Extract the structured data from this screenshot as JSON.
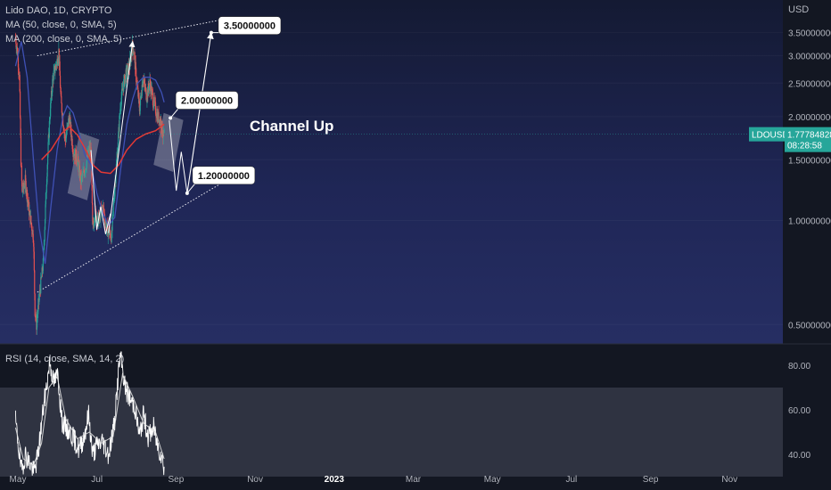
{
  "legend": {
    "symbol_line": "Lido DAO, 1D, CRYPTO",
    "ma50": "MA (50, close, 0, SMA, 5)",
    "ma200": "MA (200, close, 0, SMA, 5)",
    "rsi": "RSI (14, close, SMA, 14, 2)"
  },
  "currency": "USD",
  "price_badge": {
    "ticker": "LDOUSD",
    "price": "1.77784828",
    "countdown": "08:28:58",
    "color": "#26a69a"
  },
  "annotation": "Channel Up",
  "colors": {
    "background": "#131722",
    "candle_up": "#26a69a",
    "candle_down": "#ef5350",
    "ma50": "#3f51b5",
    "ma200": "#e53935",
    "rsi_band": "#3a3e4c"
  },
  "chart_data": [
    {
      "type": "candlestick",
      "y_scale": "log",
      "ylim": [
        0.45,
        4.1
      ],
      "y_ticks": [
        "0.50000000",
        "1.00000000",
        "1.50000000",
        "2.00000000",
        "2.50000000",
        "3.00000000",
        "3.50000000"
      ],
      "x_ticks": [
        "May",
        "Jul",
        "Sep",
        "Nov",
        "2023",
        "Mar",
        "May",
        "Jul",
        "Sep",
        "Nov"
      ],
      "close_path": [
        {
          "x": "2022-04-25",
          "y": 3.4
        },
        {
          "x": "2022-05-01",
          "y": 3.0
        },
        {
          "x": "2022-05-05",
          "y": 2.6
        },
        {
          "x": "2022-05-09",
          "y": 1.5
        },
        {
          "x": "2022-05-12",
          "y": 1.2
        },
        {
          "x": "2022-05-20",
          "y": 1.3
        },
        {
          "x": "2022-05-31",
          "y": 1.05
        },
        {
          "x": "2022-06-10",
          "y": 0.9
        },
        {
          "x": "2022-06-14",
          "y": 0.55
        },
        {
          "x": "2022-06-18",
          "y": 0.5
        },
        {
          "x": "2022-06-25",
          "y": 0.6
        },
        {
          "x": "2022-07-05",
          "y": 0.75
        },
        {
          "x": "2022-07-15",
          "y": 1.4
        },
        {
          "x": "2022-07-22",
          "y": 2.0
        },
        {
          "x": "2022-07-30",
          "y": 2.6
        },
        {
          "x": "2022-08-10",
          "y": 2.9
        },
        {
          "x": "2022-08-14",
          "y": 3.1
        },
        {
          "x": "2022-08-20",
          "y": 2.2
        },
        {
          "x": "2022-08-31",
          "y": 1.7
        },
        {
          "x": "2022-09-10",
          "y": 2.0
        },
        {
          "x": "2022-09-20",
          "y": 1.6
        },
        {
          "x": "2022-10-01",
          "y": 1.5
        },
        {
          "x": "2022-10-10",
          "y": 1.3
        },
        {
          "x": "2022-10-20",
          "y": 1.4
        },
        {
          "x": "2022-10-31",
          "y": 1.6
        },
        {
          "x": "2022-11-05",
          "y": 1.6
        },
        {
          "x": "2022-11-09",
          "y": 0.95
        },
        {
          "x": "2022-11-15",
          "y": 1.05
        },
        {
          "x": "2022-11-25",
          "y": 1.0
        },
        {
          "x": "2022-12-05",
          "y": 1.1
        },
        {
          "x": "2022-12-15",
          "y": 0.95
        },
        {
          "x": "2022-12-28",
          "y": 0.9
        },
        {
          "x": "2023-01-05",
          "y": 1.25
        },
        {
          "x": "2023-01-12",
          "y": 1.6
        },
        {
          "x": "2023-01-20",
          "y": 2.2
        },
        {
          "x": "2023-01-28",
          "y": 2.5
        },
        {
          "x": "2023-02-05",
          "y": 2.7
        },
        {
          "x": "2023-02-12",
          "y": 2.8
        },
        {
          "x": "2023-02-19",
          "y": 3.2
        },
        {
          "x": "2023-02-23",
          "y": 3.1
        },
        {
          "x": "2023-03-01",
          "y": 2.6
        },
        {
          "x": "2023-03-10",
          "y": 2.1
        },
        {
          "x": "2023-03-18",
          "y": 2.6
        },
        {
          "x": "2023-03-28",
          "y": 2.3
        },
        {
          "x": "2023-04-05",
          "y": 2.5
        },
        {
          "x": "2023-04-15",
          "y": 2.2
        },
        {
          "x": "2023-04-25",
          "y": 2.0
        },
        {
          "x": "2023-05-03",
          "y": 1.95
        },
        {
          "x": "2023-05-10",
          "y": 1.75
        },
        {
          "x": "2023-05-12",
          "y": 1.78
        }
      ],
      "ma50": [
        {
          "x": "2022-04-25",
          "y": 2.8
        },
        {
          "x": "2022-05-10",
          "y": 3.3
        },
        {
          "x": "2022-05-25",
          "y": 2.6
        },
        {
          "x": "2022-06-10",
          "y": 1.5
        },
        {
          "x": "2022-06-25",
          "y": 0.95
        },
        {
          "x": "2022-07-10",
          "y": 0.75
        },
        {
          "x": "2022-07-25",
          "y": 1.1
        },
        {
          "x": "2022-08-10",
          "y": 1.6
        },
        {
          "x": "2022-08-25",
          "y": 2.0
        },
        {
          "x": "2022-09-05",
          "y": 2.15
        },
        {
          "x": "2022-09-20",
          "y": 2.05
        },
        {
          "x": "2022-10-05",
          "y": 1.8
        },
        {
          "x": "2022-10-20",
          "y": 1.55
        },
        {
          "x": "2022-11-05",
          "y": 1.45
        },
        {
          "x": "2022-11-20",
          "y": 1.2
        },
        {
          "x": "2022-12-05",
          "y": 1.05
        },
        {
          "x": "2022-12-20",
          "y": 0.97
        },
        {
          "x": "2023-01-05",
          "y": 1.02
        },
        {
          "x": "2023-01-20",
          "y": 1.4
        },
        {
          "x": "2023-02-05",
          "y": 1.9
        },
        {
          "x": "2023-02-20",
          "y": 2.25
        },
        {
          "x": "2023-03-05",
          "y": 2.5
        },
        {
          "x": "2023-03-20",
          "y": 2.6
        },
        {
          "x": "2023-04-05",
          "y": 2.6
        },
        {
          "x": "2023-04-20",
          "y": 2.55
        },
        {
          "x": "2023-05-05",
          "y": 2.35
        },
        {
          "x": "2023-05-12",
          "y": 2.2
        }
      ],
      "ma200": [
        {
          "x": "2022-07-01",
          "y": 1.5
        },
        {
          "x": "2022-07-25",
          "y": 1.6
        },
        {
          "x": "2022-08-20",
          "y": 1.78
        },
        {
          "x": "2022-09-10",
          "y": 1.87
        },
        {
          "x": "2022-10-01",
          "y": 1.77
        },
        {
          "x": "2022-10-20",
          "y": 1.62
        },
        {
          "x": "2022-11-10",
          "y": 1.45
        },
        {
          "x": "2022-12-01",
          "y": 1.38
        },
        {
          "x": "2022-12-25",
          "y": 1.37
        },
        {
          "x": "2023-01-15",
          "y": 1.45
        },
        {
          "x": "2023-02-05",
          "y": 1.6
        },
        {
          "x": "2023-03-01",
          "y": 1.72
        },
        {
          "x": "2023-03-25",
          "y": 1.78
        },
        {
          "x": "2023-04-20",
          "y": 1.82
        },
        {
          "x": "2023-05-12",
          "y": 1.9
        }
      ],
      "channel": {
        "upper": [
          {
            "x": "2022-06-20",
            "y": 3.0
          },
          {
            "x": "2023-10-25",
            "y": 3.85
          }
        ],
        "lower": [
          {
            "x": "2022-06-20",
            "y": 0.62
          },
          {
            "x": "2023-10-25",
            "y": 1.32
          }
        ]
      },
      "projection": [
        {
          "x": "2023-05-25",
          "y": 1.95
        },
        {
          "x": "2023-06-12",
          "y": 1.22
        },
        {
          "x": "2023-06-25",
          "y": 1.58
        },
        {
          "x": "2023-07-10",
          "y": 1.2
        },
        {
          "x": "2023-09-10",
          "y": 3.5
        }
      ],
      "fractal_arrows": [
        {
          "from": {
            "x": "2022-12-20",
            "y": 0.92
          },
          "to": {
            "x": "2023-02-20",
            "y": 3.3
          }
        },
        {
          "from": {
            "x": "2022-11-05",
            "y": 1.6
          },
          "to": {
            "x": "2022-12-25",
            "y": 0.93
          },
          "style": "zigzag"
        }
      ],
      "shaded_boxes": [
        {
          "from": {
            "x": "2022-10-01",
            "y": 1.2
          },
          "to": {
            "x": "2022-11-01",
            "y": 1.8
          }
        },
        {
          "from": {
            "x": "2023-05-10",
            "y": 1.45
          },
          "to": {
            "x": "2023-06-05",
            "y": 2.05
          }
        }
      ],
      "callouts": [
        {
          "label": "3.50000000",
          "x": "2023-09-10",
          "y": 3.5
        },
        {
          "label": "2.00000000",
          "x": "2023-05-28",
          "y": 1.98
        },
        {
          "label": "1.20000000",
          "x": "2023-07-10",
          "y": 1.2
        }
      ]
    },
    {
      "type": "line",
      "name": "RSI",
      "ylim": [
        28,
        88
      ],
      "y_ticks": [
        "80.00",
        "60.00",
        "40.00"
      ],
      "band": [
        30,
        70
      ],
      "rsi": [
        {
          "x": "2022-04-25",
          "y": 55
        },
        {
          "x": "2022-05-05",
          "y": 40
        },
        {
          "x": "2022-05-10",
          "y": 32
        },
        {
          "x": "2022-05-20",
          "y": 40
        },
        {
          "x": "2022-06-01",
          "y": 36
        },
        {
          "x": "2022-06-12",
          "y": 32
        },
        {
          "x": "2022-06-22",
          "y": 40
        },
        {
          "x": "2022-07-05",
          "y": 60
        },
        {
          "x": "2022-07-15",
          "y": 72
        },
        {
          "x": "2022-07-22",
          "y": 82
        },
        {
          "x": "2022-08-01",
          "y": 72
        },
        {
          "x": "2022-08-12",
          "y": 76
        },
        {
          "x": "2022-08-22",
          "y": 55
        },
        {
          "x": "2022-09-01",
          "y": 52
        },
        {
          "x": "2022-09-12",
          "y": 50
        },
        {
          "x": "2022-09-25",
          "y": 46
        },
        {
          "x": "2022-10-05",
          "y": 42
        },
        {
          "x": "2022-10-18",
          "y": 48
        },
        {
          "x": "2022-10-30",
          "y": 58
        },
        {
          "x": "2022-11-09",
          "y": 40
        },
        {
          "x": "2022-11-20",
          "y": 44
        },
        {
          "x": "2022-12-05",
          "y": 46
        },
        {
          "x": "2022-12-20",
          "y": 40
        },
        {
          "x": "2023-01-05",
          "y": 55
        },
        {
          "x": "2023-01-15",
          "y": 78
        },
        {
          "x": "2023-01-20",
          "y": 84
        },
        {
          "x": "2023-02-01",
          "y": 70
        },
        {
          "x": "2023-02-15",
          "y": 64
        },
        {
          "x": "2023-02-25",
          "y": 62
        },
        {
          "x": "2023-03-10",
          "y": 48
        },
        {
          "x": "2023-03-20",
          "y": 58
        },
        {
          "x": "2023-04-01",
          "y": 48
        },
        {
          "x": "2023-04-15",
          "y": 52
        },
        {
          "x": "2023-04-25",
          "y": 44
        },
        {
          "x": "2023-05-05",
          "y": 40
        },
        {
          "x": "2023-05-12",
          "y": 34
        }
      ],
      "rsi_ma": [
        {
          "x": "2022-04-25",
          "y": 52
        },
        {
          "x": "2022-05-15",
          "y": 38
        },
        {
          "x": "2022-06-10",
          "y": 35
        },
        {
          "x": "2022-07-01",
          "y": 45
        },
        {
          "x": "2022-07-20",
          "y": 70
        },
        {
          "x": "2022-08-10",
          "y": 75
        },
        {
          "x": "2022-09-01",
          "y": 56
        },
        {
          "x": "2022-10-01",
          "y": 47
        },
        {
          "x": "2022-11-01",
          "y": 50
        },
        {
          "x": "2022-12-01",
          "y": 45
        },
        {
          "x": "2023-01-01",
          "y": 48
        },
        {
          "x": "2023-01-25",
          "y": 76
        },
        {
          "x": "2023-02-20",
          "y": 66
        },
        {
          "x": "2023-03-20",
          "y": 54
        },
        {
          "x": "2023-04-20",
          "y": 50
        },
        {
          "x": "2023-05-12",
          "y": 38
        }
      ]
    }
  ]
}
